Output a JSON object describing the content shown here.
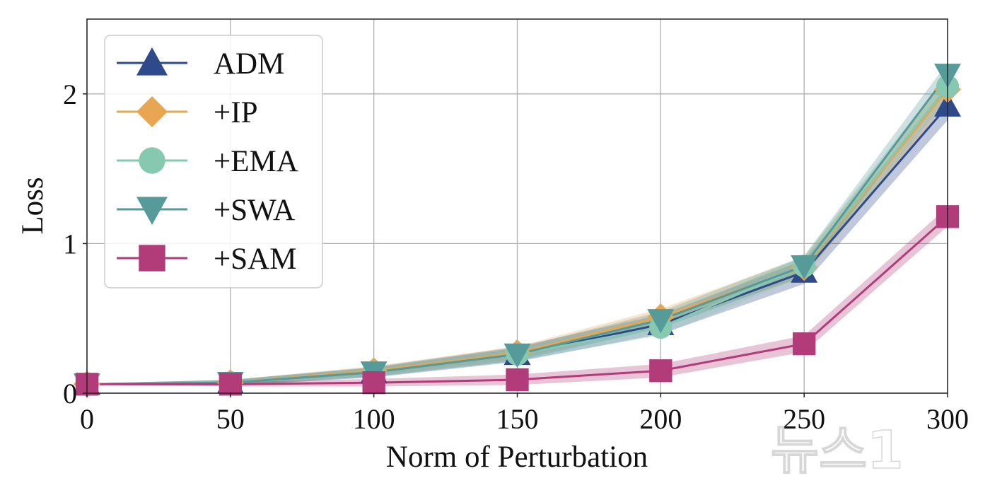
{
  "chart_data": {
    "type": "line",
    "title": "",
    "xlabel": "Norm of Perturbation",
    "ylabel": "Loss",
    "x": [
      0,
      50,
      100,
      150,
      200,
      250,
      300
    ],
    "xlim": [
      0,
      300
    ],
    "ylim": [
      0,
      2.5
    ],
    "xticks": [
      0,
      50,
      100,
      150,
      200,
      250,
      300
    ],
    "xtick_labels": [
      "0",
      "50",
      "100",
      "150",
      "200",
      "250",
      "300"
    ],
    "yticks": [
      0,
      1,
      2
    ],
    "ytick_labels": [
      "0",
      "1",
      "2"
    ],
    "grid": true,
    "legend_position": "top-left",
    "series": [
      {
        "name": "ADM",
        "color": "#2e4a8b",
        "marker": "triangle-up",
        "values": [
          0.06,
          0.07,
          0.14,
          0.26,
          0.46,
          0.81,
          1.92
        ],
        "band": 0.06
      },
      {
        "name": "+IP",
        "color": "#e8a552",
        "marker": "diamond",
        "values": [
          0.06,
          0.07,
          0.15,
          0.27,
          0.51,
          0.84,
          2.03
        ],
        "band": 0.05
      },
      {
        "name": "+EMA",
        "color": "#86c9b0",
        "marker": "circle",
        "values": [
          0.06,
          0.07,
          0.14,
          0.26,
          0.44,
          0.85,
          2.05
        ],
        "band": 0.05
      },
      {
        "name": "+SWA",
        "color": "#569a99",
        "marker": "triangle-down",
        "values": [
          0.06,
          0.07,
          0.14,
          0.26,
          0.49,
          0.85,
          2.13
        ],
        "band": 0.05
      },
      {
        "name": "+SAM",
        "color": "#b23b7a",
        "marker": "square",
        "values": [
          0.06,
          0.06,
          0.07,
          0.09,
          0.15,
          0.33,
          1.18
        ],
        "band": 0.04
      }
    ]
  },
  "watermark": {
    "text": "뉴스1"
  }
}
